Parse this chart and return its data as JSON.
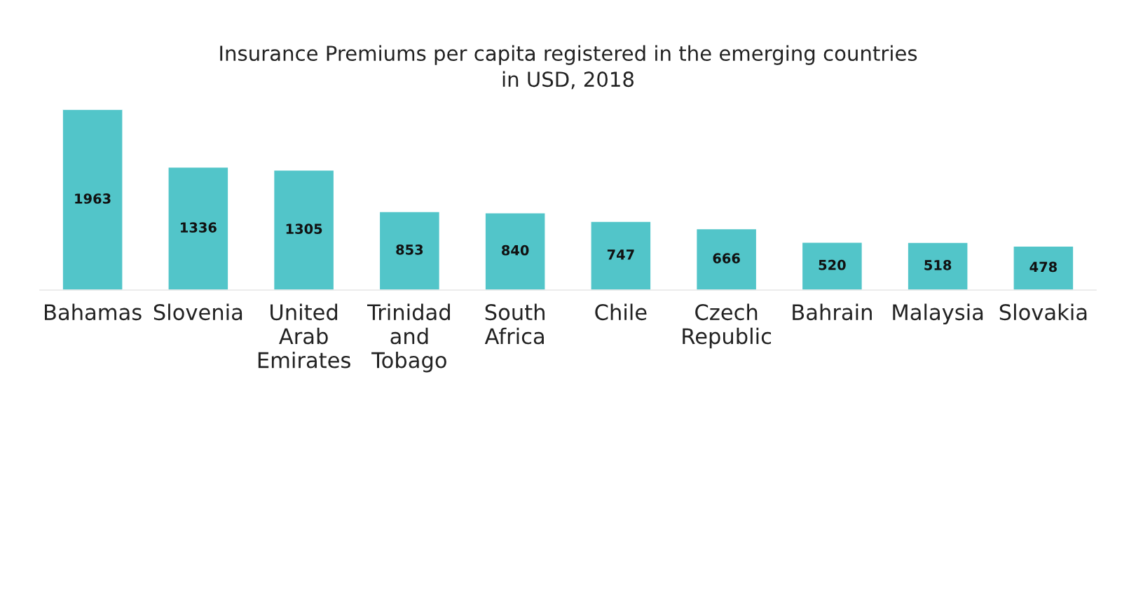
{
  "chart_data": {
    "type": "bar",
    "title": "Insurance Premiums per capita registered in the emerging countries\nin USD, 2018",
    "categories": [
      "Bahamas",
      "Slovenia",
      "United Arab Emirates",
      "Trinidad and Tobago",
      "South Africa",
      "Chile",
      "Czech Republic",
      "Bahrain",
      "Malaysia",
      "Slovakia"
    ],
    "values": [
      1963,
      1336,
      1305,
      853,
      840,
      747,
      666,
      520,
      518,
      478
    ],
    "color": "#52c5c9",
    "data_labels": true,
    "grid": false,
    "legend": false
  }
}
